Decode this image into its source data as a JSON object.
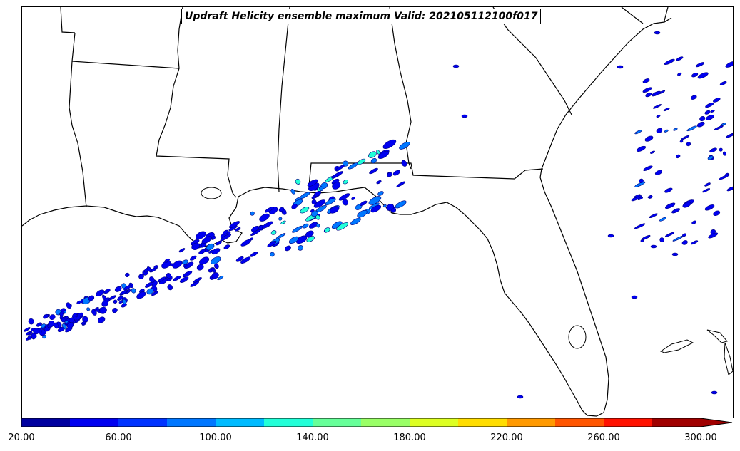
{
  "title": "Updraft Helicity ensemble maximum Valid: 202105112100f017",
  "colorbar": {
    "colors": [
      "#00009f",
      "#0000f0",
      "#0033ff",
      "#0077ff",
      "#00bbff",
      "#22ffd8",
      "#66ff99",
      "#99ff66",
      "#ddff22",
      "#ffdd00",
      "#ff9900",
      "#ff5500",
      "#ff1100",
      "#a00000"
    ],
    "tick_labels": [
      "20.00",
      "60.00",
      "100.00",
      "140.00",
      "180.00",
      "220.00",
      "260.00",
      "300.00"
    ],
    "min": 20,
    "max": 300,
    "extend": "max"
  },
  "map": {
    "land_color": "#ffffff",
    "line_color": "#000000",
    "contour_base_color": "#0000f0",
    "contour_edge_color": "#000080"
  }
}
